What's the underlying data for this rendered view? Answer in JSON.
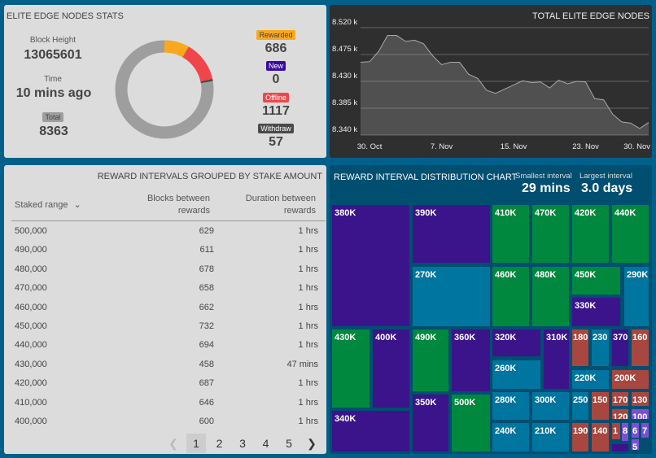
{
  "stats": {
    "title": "ELITE EDGE NODES STATS",
    "block_height_label": "Block Height",
    "block_height": "13065601",
    "time_label": "Time",
    "time": "10 mins ago",
    "total_label": "Total",
    "total": "8363",
    "rewarded_label": "Rewarded",
    "rewarded": "686",
    "new_label": "New",
    "new": "0",
    "offline_label": "Offline",
    "offline": "1117",
    "withdraw_label": "Withdraw",
    "withdraw": "57",
    "donut": {
      "total": 8363,
      "segments": [
        {
          "name": "Rewarded",
          "value": 686,
          "color": "#f8a91e"
        },
        {
          "name": "Offline",
          "value": 1117,
          "color": "#f0464a"
        },
        {
          "name": "Withdraw",
          "value": 57,
          "color": "#4a4a4a"
        }
      ],
      "rest_color": "#9e9e9e"
    },
    "colors": {
      "rewarded": "#f8a91e",
      "new": "#3a0ca3",
      "offline": "#f0464a",
      "withdraw": "#4a4a4a",
      "total": "#9e9e9e"
    }
  },
  "chart_data": {
    "type": "area",
    "title": "TOTAL ELITE EDGE NODES",
    "ylim": [
      8.34,
      8.52
    ],
    "yticks": [
      "8.520 k",
      "8.475 k",
      "8.430 k",
      "8.385 k",
      "8.340 k"
    ],
    "ytick_values": [
      8.52,
      8.475,
      8.43,
      8.385,
      8.34
    ],
    "xticks": [
      "30. Oct",
      "7. Nov",
      "15. Nov",
      "23. Nov",
      "30. Nov"
    ],
    "xtick_dates": [
      "2020-10-30",
      "2020-11-07",
      "2020-11-15",
      "2020-11-23",
      "2020-11-30"
    ],
    "x_start": "2020-10-29",
    "x_step": "1 day",
    "values": [
      8.462,
      8.463,
      8.48,
      8.507,
      8.507,
      8.497,
      8.499,
      8.493,
      8.473,
      8.458,
      8.462,
      8.462,
      8.442,
      8.435,
      8.415,
      8.41,
      8.417,
      8.424,
      8.431,
      8.428,
      8.429,
      8.419,
      8.432,
      8.426,
      8.43,
      8.429,
      8.401,
      8.399,
      8.375,
      8.362,
      8.36,
      8.351,
      8.361
    ]
  },
  "table": {
    "title": "REWARD INTERVALS GROUPED BY STAKE AMOUNT",
    "headers": {
      "range": "Staked range",
      "blocks": "Blocks between rewards",
      "duration": "Duration between rewards"
    },
    "rows": [
      [
        "500,000",
        "629",
        "1 hrs"
      ],
      [
        "490,000",
        "611",
        "1 hrs"
      ],
      [
        "480,000",
        "678",
        "1 hrs"
      ],
      [
        "470,000",
        "658",
        "1 hrs"
      ],
      [
        "460,000",
        "662",
        "1 hrs"
      ],
      [
        "450,000",
        "732",
        "1 hrs"
      ],
      [
        "440,000",
        "694",
        "1 hrs"
      ],
      [
        "430,000",
        "458",
        "47 mins"
      ],
      [
        "420,000",
        "687",
        "1 hrs"
      ],
      [
        "410,000",
        "646",
        "1 hrs"
      ],
      [
        "400,000",
        "600",
        "1 hrs"
      ]
    ],
    "pages": [
      "1",
      "2",
      "3",
      "4",
      "5"
    ],
    "current_page": "1"
  },
  "treemap": {
    "title": "REWARD INTERVAL DISTRIBUTION CHART",
    "smallest_label": "Smallest interval",
    "smallest": "29 mins",
    "largest_label": "Largest interval",
    "largest": "3.0 days",
    "colors": {
      "purple": "#3b148c",
      "green": "#00893e",
      "teal": "#0075a0",
      "red": "#a8473f",
      "lilac": "#7b4fd6"
    },
    "tiles": [
      {
        "label": "380K",
        "c": "purple"
      },
      {
        "label": "430K",
        "c": "green"
      },
      {
        "label": "400K",
        "c": "purple"
      },
      {
        "label": "340K",
        "c": "purple"
      },
      {
        "label": "390K",
        "c": "purple"
      },
      {
        "label": "270K",
        "c": "teal"
      },
      {
        "label": "410K",
        "c": "green"
      },
      {
        "label": "470K",
        "c": "green"
      },
      {
        "label": "420K",
        "c": "green"
      },
      {
        "label": "440K",
        "c": "green"
      },
      {
        "label": "460K",
        "c": "green"
      },
      {
        "label": "480K",
        "c": "green"
      },
      {
        "label": "450K",
        "c": "green"
      },
      {
        "label": "330K",
        "c": "purple"
      },
      {
        "label": "290K",
        "c": "teal"
      },
      {
        "label": "490K",
        "c": "green"
      },
      {
        "label": "360K",
        "c": "purple"
      },
      {
        "label": "350K",
        "c": "purple"
      },
      {
        "label": "500K",
        "c": "green"
      },
      {
        "label": "320K",
        "c": "purple"
      },
      {
        "label": "260K",
        "c": "teal"
      },
      {
        "label": "310K",
        "c": "purple"
      },
      {
        "label": "180",
        "c": "red"
      },
      {
        "label": "230",
        "c": "teal"
      },
      {
        "label": "370",
        "c": "purple"
      },
      {
        "label": "160",
        "c": "red"
      },
      {
        "label": "220K",
        "c": "teal"
      },
      {
        "label": "200K",
        "c": "red"
      },
      {
        "label": "280K",
        "c": "teal"
      },
      {
        "label": "300K",
        "c": "teal"
      },
      {
        "label": "240K",
        "c": "teal"
      },
      {
        "label": "210K",
        "c": "teal"
      },
      {
        "label": "250",
        "c": "teal"
      },
      {
        "label": "150",
        "c": "red"
      },
      {
        "label": "190",
        "c": "red"
      },
      {
        "label": "140",
        "c": "red"
      },
      {
        "label": "170",
        "c": "red"
      },
      {
        "label": "130",
        "c": "red"
      },
      {
        "label": "120",
        "c": "red"
      },
      {
        "label": "100",
        "c": "lilac"
      },
      {
        "label": "1",
        "c": "red"
      },
      {
        "label": "8",
        "c": "lilac"
      },
      {
        "label": "6",
        "c": "lilac"
      },
      {
        "label": "7",
        "c": "lilac"
      },
      {
        "label": "5",
        "c": "lilac"
      },
      {
        "label": "",
        "c": "purple"
      }
    ]
  }
}
